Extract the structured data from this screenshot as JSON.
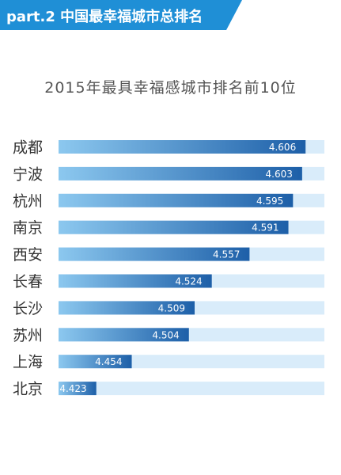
{
  "header": {
    "banner_text": "part.2 中国最幸福城市总排名",
    "banner_color": "#1f8fd6"
  },
  "chart_data": {
    "type": "bar",
    "orientation": "horizontal",
    "title": "2015年最具幸福感城市排名前10位",
    "categories": [
      "成都",
      "宁波",
      "杭州",
      "南京",
      "西安",
      "长春",
      "长沙",
      "苏州",
      "上海",
      "北京"
    ],
    "values": [
      4.606,
      4.603,
      4.595,
      4.591,
      4.557,
      4.524,
      4.509,
      4.504,
      4.454,
      4.423
    ],
    "value_labels": [
      "4.606",
      "4.603",
      "4.595",
      "4.591",
      "4.557",
      "4.524",
      "4.509",
      "4.504",
      "4.454",
      "4.423"
    ],
    "xlim": [
      4.39,
      4.61
    ],
    "grid": false,
    "legend": "none",
    "colors": {
      "track": "#d9ecfa",
      "bar_light": "#8cc8ef",
      "bar_dark": "#1d5fa8",
      "text": "#333333",
      "value_text": "#ffffff"
    }
  }
}
